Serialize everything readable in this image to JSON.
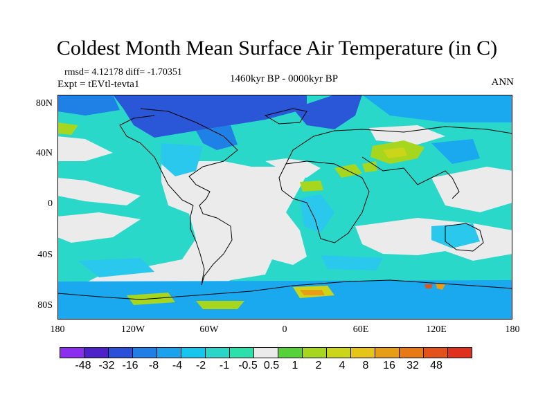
{
  "title": "Coldest Month Mean Surface Air Temperature (in C)",
  "stats": "rmsd= 4.12178 diff= -1.70351",
  "experiment": "Expt = tEVtl-tevta1",
  "period": "1460kyr BP - 0000kyr BP",
  "season": "ANN",
  "lat_labels": [
    "80N",
    "40N",
    "0",
    "40S",
    "80S"
  ],
  "lon_labels": [
    "180",
    "120W",
    "60W",
    "0",
    "60E",
    "120E",
    "180"
  ],
  "legend": {
    "colors": [
      "#8b2ef0",
      "#4d22c8",
      "#2a4fd9",
      "#1f7fe6",
      "#1aa2ee",
      "#17c6ee",
      "#29d6c8",
      "#2be0aa",
      "#ebebeb",
      "#55d23a",
      "#a6d61e",
      "#cbd51a",
      "#e6c418",
      "#e79e16",
      "#e77a14",
      "#e3521a",
      "#e0301c"
    ],
    "labels": [
      "-48",
      "-32",
      "-16",
      "-8",
      "-4",
      "-2",
      "-1",
      "-0.5",
      "0.5",
      "1",
      "2",
      "4",
      "8",
      "16",
      "32",
      "48"
    ]
  },
  "field_colors": {
    "ocean": "#2ad8c9",
    "neutral": "#ebebeb",
    "cool_1": "#29c8ec",
    "cool_2": "#1aa8ee",
    "cool_3": "#1f80e6",
    "cool_4": "#2a56d8",
    "warm_1": "#a6d61e",
    "warm_2": "#cbd51a",
    "warm_3": "#e79e16",
    "warm_4": "#e3521a",
    "coast": "#000000"
  }
}
